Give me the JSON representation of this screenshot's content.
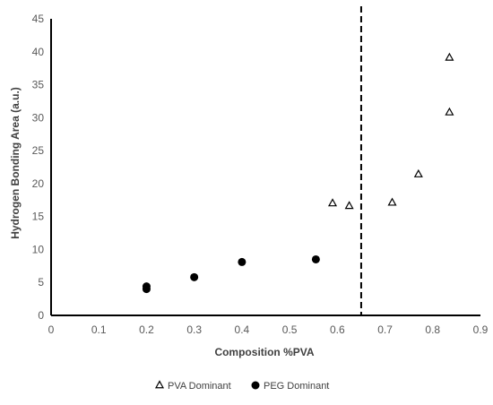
{
  "chart_data": {
    "type": "scatter",
    "title": "",
    "xlabel": "Composition %PVA",
    "ylabel": "Hydrogen Bonding Area (a.u.)",
    "xlim": [
      0,
      0.9
    ],
    "ylim": [
      0,
      45
    ],
    "x_ticks": [
      "0",
      "0.1",
      "0.2",
      "0.3",
      "0.4",
      "0.5",
      "0.6",
      "0.7",
      "0.8",
      "0.9"
    ],
    "y_ticks": [
      "0",
      "5",
      "10",
      "15",
      "20",
      "25",
      "30",
      "35",
      "40",
      "45"
    ],
    "grid": false,
    "legend_position": "bottom",
    "reference_line": {
      "x": 0.65,
      "style": "dashed",
      "color": "#000000"
    },
    "series": [
      {
        "name": "PVA Dominant",
        "marker": "open-triangle",
        "color": "#000000",
        "points": [
          {
            "x": 0.59,
            "y": 17.0
          },
          {
            "x": 0.625,
            "y": 16.6
          },
          {
            "x": 0.715,
            "y": 17.1
          },
          {
            "x": 0.77,
            "y": 21.4
          },
          {
            "x": 0.835,
            "y": 30.8
          },
          {
            "x": 0.835,
            "y": 39.1
          }
        ]
      },
      {
        "name": "PEG Dominant",
        "marker": "filled-circle",
        "color": "#000000",
        "points": [
          {
            "x": 0.2,
            "y": 4.0
          },
          {
            "x": 0.2,
            "y": 4.4
          },
          {
            "x": 0.3,
            "y": 5.8
          },
          {
            "x": 0.4,
            "y": 8.1
          },
          {
            "x": 0.555,
            "y": 8.5
          }
        ]
      }
    ]
  }
}
